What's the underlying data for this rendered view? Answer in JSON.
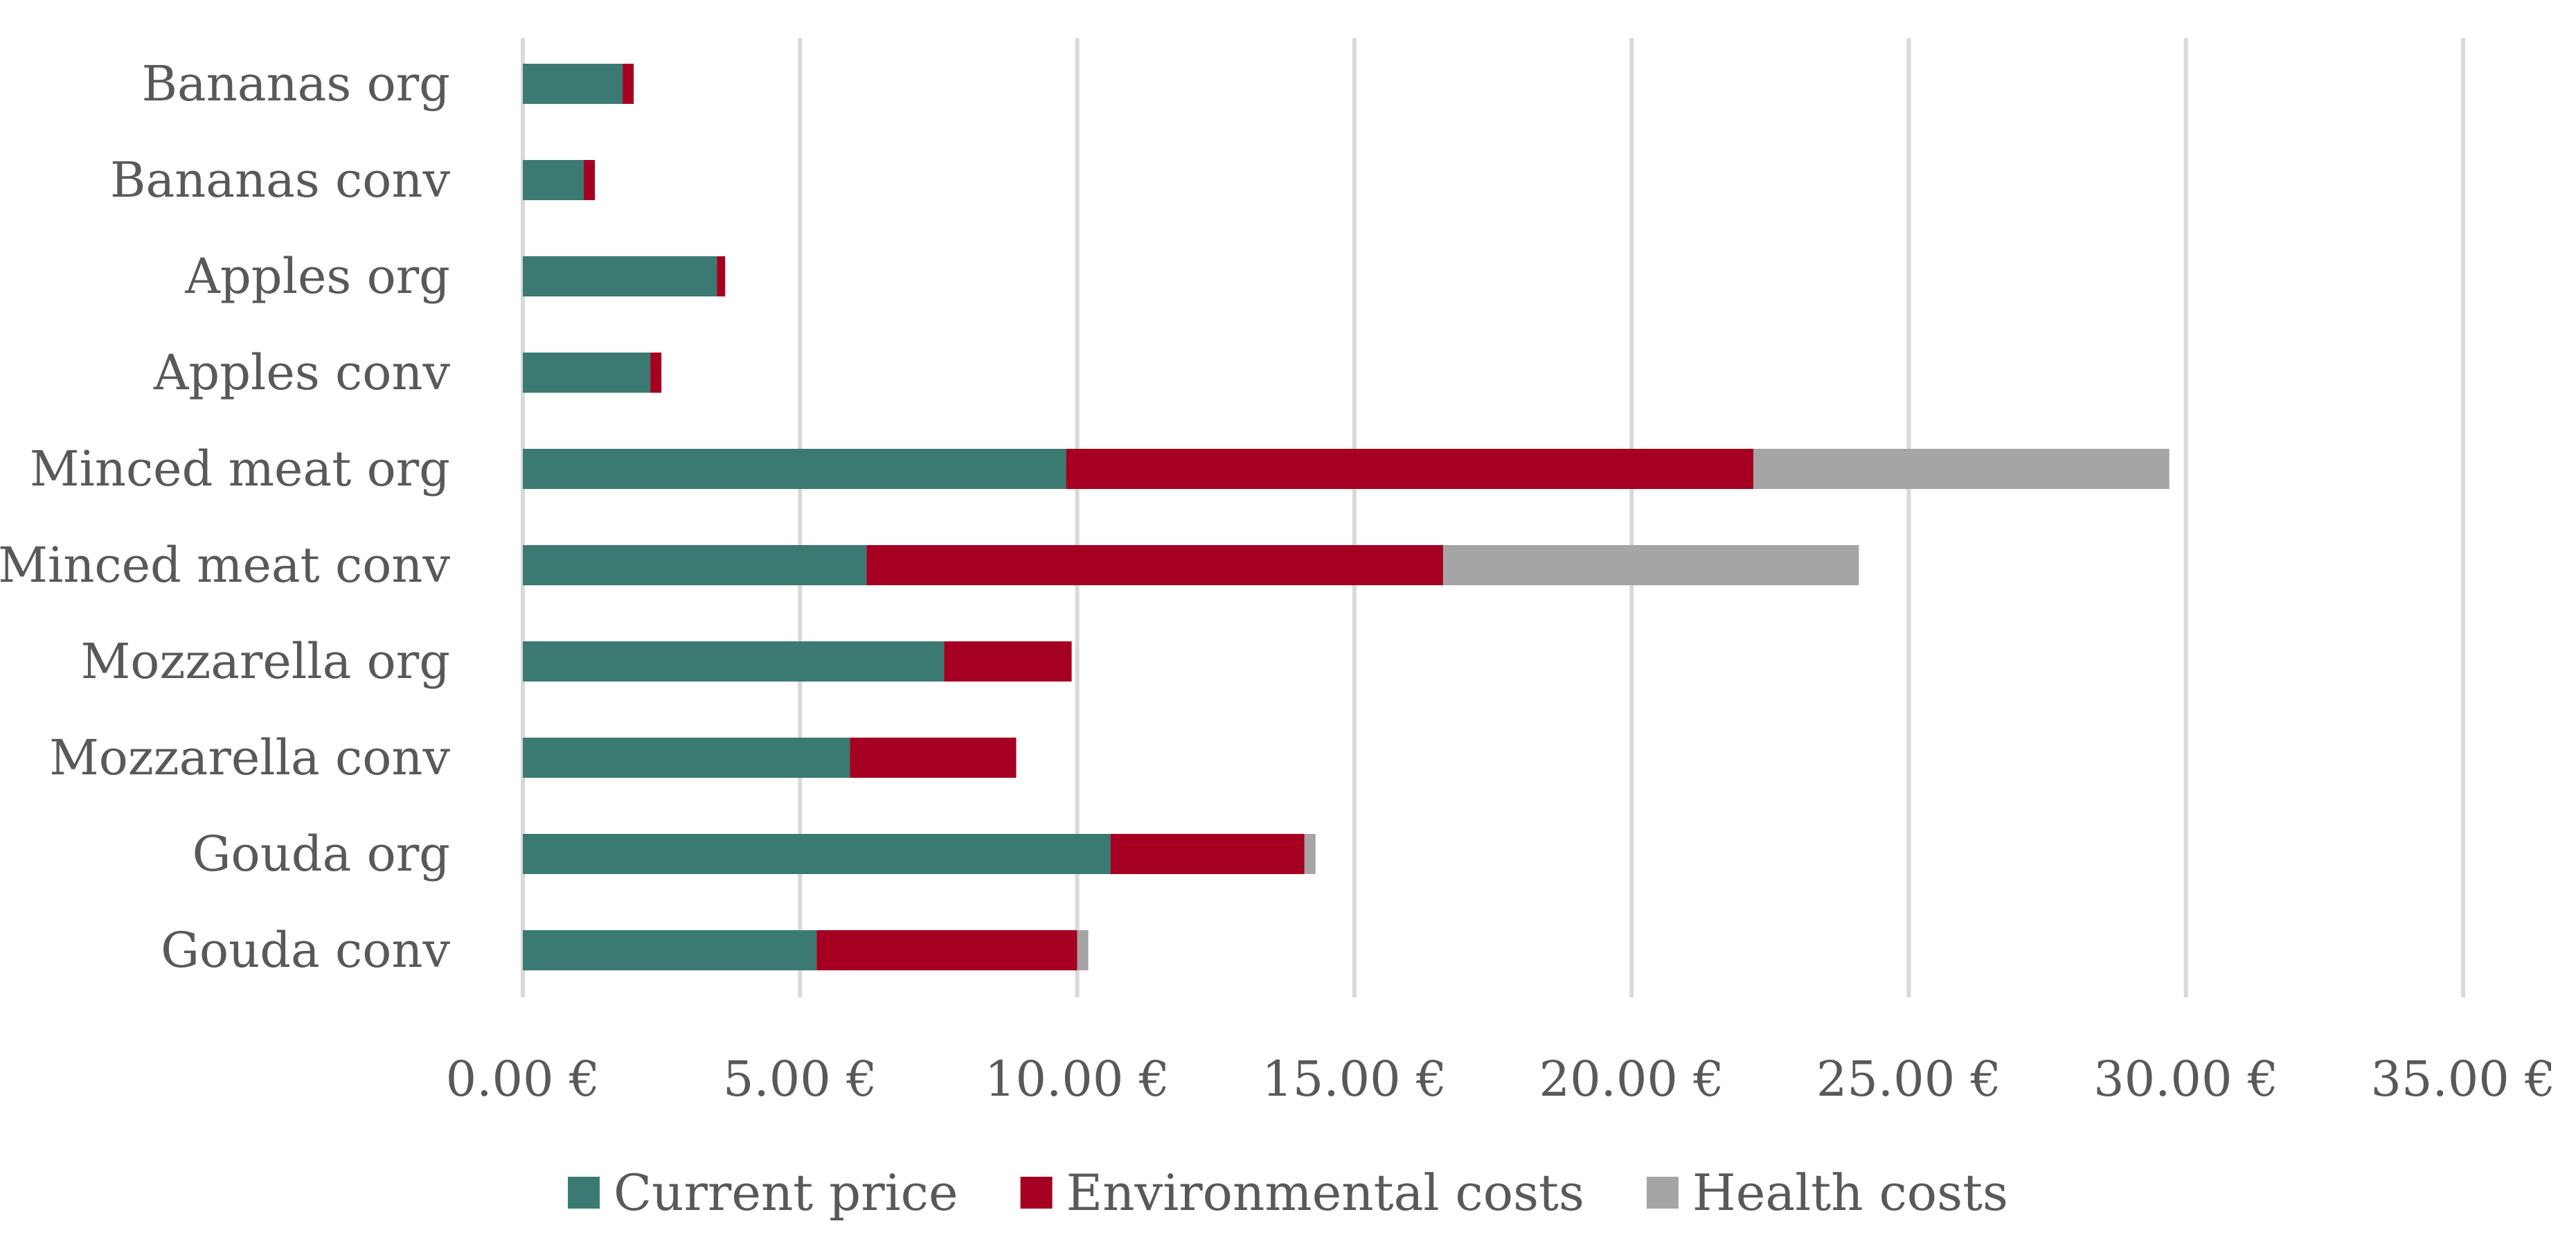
{
  "chart_data": {
    "type": "bar",
    "orientation": "horizontal",
    "stacked": true,
    "title": "",
    "xlabel": "",
    "ylabel": "",
    "categories": [
      "Bananas org",
      "Bananas conv",
      "Apples org",
      "Apples conv",
      "Minced meat org",
      "Minced meat conv",
      "Mozzarella org",
      "Mozzarella conv",
      "Gouda org",
      "Gouda conv"
    ],
    "series": [
      {
        "name": "Current price",
        "color": "#3b7a72",
        "values": [
          1.8,
          1.1,
          3.5,
          2.3,
          9.8,
          6.2,
          7.6,
          5.9,
          10.6,
          5.3
        ]
      },
      {
        "name": "Environmental costs",
        "color": "#a50021",
        "values": [
          0.2,
          0.2,
          0.15,
          0.2,
          12.4,
          10.4,
          2.3,
          3.0,
          3.5,
          4.7
        ]
      },
      {
        "name": "Health costs",
        "color": "#a5a5a5",
        "values": [
          0,
          0,
          0,
          0,
          7.5,
          7.5,
          0,
          0,
          0.2,
          0.2
        ]
      }
    ],
    "xlim": [
      0,
      35
    ],
    "xticks": [
      0,
      5,
      10,
      15,
      20,
      25,
      30,
      35
    ],
    "xtick_labels": [
      "0.00 €",
      "5.00 €",
      "10.00 €",
      "15.00 €",
      "20.00 €",
      "25.00 €",
      "30.00 €",
      "35.00 €"
    ],
    "grid": true,
    "legend_position": "bottom"
  }
}
